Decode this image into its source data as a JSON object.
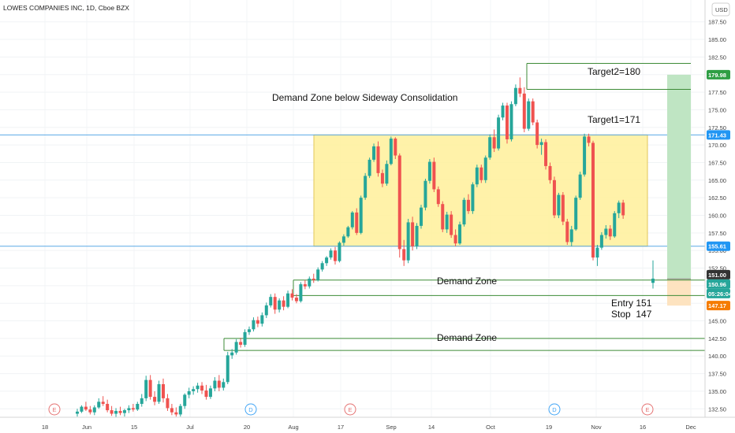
{
  "chart_data": {
    "type": "candlestick",
    "title": "LOWES COMPANIES INC, 1D, Cboe BZX",
    "currency": "USD",
    "y_ticks": [
      132.5,
      135.0,
      137.5,
      140.0,
      142.5,
      145.0,
      147.5,
      150.0,
      152.5,
      155.0,
      157.5,
      160.0,
      162.5,
      165.0,
      167.5,
      170.0,
      172.5,
      175.0,
      177.5,
      180.0,
      182.5,
      185.0,
      187.5
    ],
    "ylim": [
      131.3,
      190.6
    ],
    "x_ticks": [
      "18",
      "Jun",
      "15",
      "Jul",
      "20",
      "Aug",
      "17",
      "Sep",
      "14",
      "Oct",
      "19",
      "Nov",
      "16",
      "Dec"
    ],
    "price_labels": {
      "target2": "179.98",
      "resistance": "171.43",
      "support": "155.61",
      "last": "151.00",
      "entry": "150.96",
      "countdown": "05:26:04",
      "stop": "147.17"
    },
    "annotations": {
      "zone_title": "Demand Zone below Sideway Consolidation",
      "target2": "Target2=180",
      "target1": "Target1=171",
      "demand_zone_upper": "Demand Zone",
      "demand_zone_lower": "Demand Zone",
      "entry": "Entry 151",
      "stop": "Stop  147"
    },
    "zones": {
      "consolidation": [
        155.61,
        171.43
      ],
      "demand_upper": [
        148.6,
        150.8
      ],
      "demand_lower": [
        140.8,
        142.5
      ],
      "reward": [
        150.96,
        179.98
      ],
      "risk": [
        147.17,
        150.96
      ]
    },
    "event_markers": [
      "E",
      "D",
      "E",
      "D",
      "E"
    ],
    "candles": [
      {
        "o": 131.8,
        "h": 132.5,
        "l": 131.4,
        "c": 132.1
      },
      {
        "o": 132.1,
        "h": 133.0,
        "l": 131.9,
        "c": 132.8
      },
      {
        "o": 132.8,
        "h": 133.5,
        "l": 132.2,
        "c": 132.4
      },
      {
        "o": 132.4,
        "h": 132.9,
        "l": 131.7,
        "c": 132.0
      },
      {
        "o": 132.0,
        "h": 133.0,
        "l": 131.6,
        "c": 132.7
      },
      {
        "o": 132.7,
        "h": 134.0,
        "l": 132.5,
        "c": 133.5
      },
      {
        "o": 133.5,
        "h": 134.3,
        "l": 132.9,
        "c": 133.2
      },
      {
        "o": 133.2,
        "h": 133.8,
        "l": 132.0,
        "c": 132.3
      },
      {
        "o": 132.3,
        "h": 132.9,
        "l": 131.5,
        "c": 131.8
      },
      {
        "o": 131.8,
        "h": 132.6,
        "l": 131.3,
        "c": 132.2
      },
      {
        "o": 132.2,
        "h": 132.8,
        "l": 131.6,
        "c": 131.9
      },
      {
        "o": 131.9,
        "h": 132.5,
        "l": 131.4,
        "c": 132.3
      },
      {
        "o": 132.3,
        "h": 133.0,
        "l": 131.9,
        "c": 132.6
      },
      {
        "o": 132.6,
        "h": 133.2,
        "l": 132.1,
        "c": 132.4
      },
      {
        "o": 132.4,
        "h": 133.5,
        "l": 132.2,
        "c": 133.2
      },
      {
        "o": 133.2,
        "h": 134.6,
        "l": 132.8,
        "c": 134.0
      },
      {
        "o": 134.0,
        "h": 137.2,
        "l": 133.6,
        "c": 136.6
      },
      {
        "o": 136.6,
        "h": 137.3,
        "l": 133.8,
        "c": 134.2
      },
      {
        "o": 134.2,
        "h": 135.0,
        "l": 133.0,
        "c": 133.5
      },
      {
        "o": 133.5,
        "h": 136.5,
        "l": 133.2,
        "c": 136.0
      },
      {
        "o": 136.0,
        "h": 136.8,
        "l": 133.4,
        "c": 134.0
      },
      {
        "o": 134.0,
        "h": 134.6,
        "l": 132.2,
        "c": 132.6
      },
      {
        "o": 132.6,
        "h": 133.2,
        "l": 131.6,
        "c": 132.0
      },
      {
        "o": 132.0,
        "h": 132.7,
        "l": 131.4,
        "c": 131.7
      },
      {
        "o": 131.7,
        "h": 133.2,
        "l": 131.4,
        "c": 132.9
      },
      {
        "o": 132.9,
        "h": 134.7,
        "l": 132.5,
        "c": 134.5
      },
      {
        "o": 134.5,
        "h": 135.5,
        "l": 134.0,
        "c": 135.0
      },
      {
        "o": 135.0,
        "h": 135.7,
        "l": 134.5,
        "c": 135.3
      },
      {
        "o": 135.3,
        "h": 136.2,
        "l": 134.8,
        "c": 135.8
      },
      {
        "o": 135.8,
        "h": 136.3,
        "l": 134.6,
        "c": 135.1
      },
      {
        "o": 135.1,
        "h": 135.9,
        "l": 133.8,
        "c": 134.2
      },
      {
        "o": 134.2,
        "h": 135.8,
        "l": 133.9,
        "c": 135.4
      },
      {
        "o": 135.4,
        "h": 137.0,
        "l": 135.0,
        "c": 136.5
      },
      {
        "o": 136.5,
        "h": 137.3,
        "l": 135.0,
        "c": 135.5
      },
      {
        "o": 135.5,
        "h": 136.8,
        "l": 135.1,
        "c": 136.3
      },
      {
        "o": 136.3,
        "h": 140.6,
        "l": 136.0,
        "c": 140.1
      },
      {
        "o": 140.1,
        "h": 141.0,
        "l": 139.6,
        "c": 140.5
      },
      {
        "o": 140.5,
        "h": 142.4,
        "l": 140.2,
        "c": 142.0
      },
      {
        "o": 142.0,
        "h": 142.6,
        "l": 141.2,
        "c": 141.6
      },
      {
        "o": 141.6,
        "h": 143.8,
        "l": 141.3,
        "c": 143.4
      },
      {
        "o": 143.4,
        "h": 144.2,
        "l": 143.0,
        "c": 143.8
      },
      {
        "o": 143.8,
        "h": 145.5,
        "l": 143.5,
        "c": 145.1
      },
      {
        "o": 145.1,
        "h": 145.6,
        "l": 144.1,
        "c": 144.6
      },
      {
        "o": 144.6,
        "h": 146.2,
        "l": 144.2,
        "c": 145.8
      },
      {
        "o": 145.8,
        "h": 147.6,
        "l": 145.4,
        "c": 147.2
      },
      {
        "o": 147.2,
        "h": 148.8,
        "l": 146.9,
        "c": 148.4
      },
      {
        "o": 148.4,
        "h": 148.9,
        "l": 146.0,
        "c": 146.6
      },
      {
        "o": 146.6,
        "h": 148.2,
        "l": 146.2,
        "c": 147.9
      },
      {
        "o": 147.9,
        "h": 148.5,
        "l": 146.5,
        "c": 147.0
      },
      {
        "o": 147.0,
        "h": 149.3,
        "l": 146.8,
        "c": 148.9
      },
      {
        "o": 148.9,
        "h": 149.5,
        "l": 147.9,
        "c": 148.3
      },
      {
        "o": 148.3,
        "h": 148.8,
        "l": 147.5,
        "c": 147.8
      },
      {
        "o": 147.8,
        "h": 150.5,
        "l": 147.6,
        "c": 150.2
      },
      {
        "o": 150.2,
        "h": 150.8,
        "l": 149.5,
        "c": 149.9
      },
      {
        "o": 149.9,
        "h": 151.3,
        "l": 149.6,
        "c": 151.0
      },
      {
        "o": 151.0,
        "h": 151.7,
        "l": 150.4,
        "c": 150.8
      },
      {
        "o": 150.8,
        "h": 152.6,
        "l": 150.6,
        "c": 152.3
      },
      {
        "o": 152.3,
        "h": 153.5,
        "l": 152.0,
        "c": 153.2
      },
      {
        "o": 153.2,
        "h": 154.2,
        "l": 152.8,
        "c": 154.0
      },
      {
        "o": 154.0,
        "h": 155.3,
        "l": 153.7,
        "c": 155.0
      },
      {
        "o": 155.0,
        "h": 155.5,
        "l": 153.0,
        "c": 153.5
      },
      {
        "o": 153.5,
        "h": 156.3,
        "l": 153.3,
        "c": 156.1
      },
      {
        "o": 156.1,
        "h": 157.3,
        "l": 155.7,
        "c": 157.0
      },
      {
        "o": 157.0,
        "h": 158.5,
        "l": 156.8,
        "c": 158.3
      },
      {
        "o": 158.3,
        "h": 160.6,
        "l": 158.0,
        "c": 160.4
      },
      {
        "o": 160.4,
        "h": 161.0,
        "l": 157.2,
        "c": 157.5
      },
      {
        "o": 157.5,
        "h": 162.8,
        "l": 157.3,
        "c": 162.5
      },
      {
        "o": 162.5,
        "h": 166.0,
        "l": 162.2,
        "c": 165.6
      },
      {
        "o": 165.6,
        "h": 168.2,
        "l": 165.3,
        "c": 167.9
      },
      {
        "o": 167.9,
        "h": 170.2,
        "l": 167.6,
        "c": 169.8
      },
      {
        "o": 169.8,
        "h": 170.5,
        "l": 165.5,
        "c": 166.0
      },
      {
        "o": 166.0,
        "h": 166.5,
        "l": 164.0,
        "c": 164.5
      },
      {
        "o": 164.5,
        "h": 167.8,
        "l": 164.2,
        "c": 167.3
      },
      {
        "o": 167.3,
        "h": 171.2,
        "l": 167.1,
        "c": 170.9
      },
      {
        "o": 170.9,
        "h": 171.1,
        "l": 168.0,
        "c": 168.5
      },
      {
        "o": 168.5,
        "h": 168.8,
        "l": 154.0,
        "c": 155.2
      },
      {
        "o": 155.2,
        "h": 156.5,
        "l": 152.8,
        "c": 153.6
      },
      {
        "o": 153.6,
        "h": 159.5,
        "l": 153.2,
        "c": 159.0
      },
      {
        "o": 159.0,
        "h": 159.8,
        "l": 155.0,
        "c": 155.6
      },
      {
        "o": 155.6,
        "h": 158.9,
        "l": 155.2,
        "c": 158.5
      },
      {
        "o": 158.5,
        "h": 161.5,
        "l": 158.1,
        "c": 161.1
      },
      {
        "o": 161.1,
        "h": 165.2,
        "l": 160.7,
        "c": 164.9
      },
      {
        "o": 164.9,
        "h": 168.0,
        "l": 164.5,
        "c": 167.6
      },
      {
        "o": 167.6,
        "h": 168.2,
        "l": 163.3,
        "c": 163.7
      },
      {
        "o": 163.7,
        "h": 164.1,
        "l": 161.2,
        "c": 161.6
      },
      {
        "o": 161.6,
        "h": 162.0,
        "l": 157.6,
        "c": 158.0
      },
      {
        "o": 158.0,
        "h": 160.5,
        "l": 157.5,
        "c": 160.1
      },
      {
        "o": 160.1,
        "h": 160.6,
        "l": 156.8,
        "c": 157.2
      },
      {
        "o": 157.2,
        "h": 158.0,
        "l": 155.6,
        "c": 156.0
      },
      {
        "o": 156.0,
        "h": 159.1,
        "l": 155.8,
        "c": 158.7
      },
      {
        "o": 158.7,
        "h": 162.5,
        "l": 158.4,
        "c": 162.2
      },
      {
        "o": 162.2,
        "h": 163.0,
        "l": 160.2,
        "c": 160.6
      },
      {
        "o": 160.6,
        "h": 164.7,
        "l": 160.2,
        "c": 164.4
      },
      {
        "o": 164.4,
        "h": 167.2,
        "l": 164.0,
        "c": 166.8
      },
      {
        "o": 166.8,
        "h": 167.2,
        "l": 164.6,
        "c": 165.0
      },
      {
        "o": 165.0,
        "h": 168.5,
        "l": 164.6,
        "c": 168.2
      },
      {
        "o": 168.2,
        "h": 171.5,
        "l": 167.9,
        "c": 171.1
      },
      {
        "o": 171.1,
        "h": 172.2,
        "l": 169.0,
        "c": 169.5
      },
      {
        "o": 169.5,
        "h": 174.3,
        "l": 169.2,
        "c": 173.9
      },
      {
        "o": 173.9,
        "h": 176.0,
        "l": 173.5,
        "c": 175.6
      },
      {
        "o": 175.6,
        "h": 176.0,
        "l": 170.2,
        "c": 170.8
      },
      {
        "o": 170.8,
        "h": 176.2,
        "l": 170.5,
        "c": 175.8
      },
      {
        "o": 175.8,
        "h": 178.6,
        "l": 175.5,
        "c": 178.1
      },
      {
        "o": 178.1,
        "h": 179.6,
        "l": 176.8,
        "c": 177.3
      },
      {
        "o": 177.3,
        "h": 178.2,
        "l": 171.8,
        "c": 172.3
      },
      {
        "o": 172.3,
        "h": 176.6,
        "l": 172.0,
        "c": 176.2
      },
      {
        "o": 176.2,
        "h": 176.6,
        "l": 172.8,
        "c": 173.2
      },
      {
        "o": 173.2,
        "h": 173.6,
        "l": 169.5,
        "c": 170.0
      },
      {
        "o": 170.0,
        "h": 170.9,
        "l": 168.6,
        "c": 170.4
      },
      {
        "o": 170.4,
        "h": 170.8,
        "l": 166.5,
        "c": 167.0
      },
      {
        "o": 167.0,
        "h": 167.5,
        "l": 164.5,
        "c": 165.0
      },
      {
        "o": 165.0,
        "h": 165.5,
        "l": 159.6,
        "c": 160.0
      },
      {
        "o": 160.0,
        "h": 163.2,
        "l": 159.6,
        "c": 162.9
      },
      {
        "o": 162.9,
        "h": 163.3,
        "l": 158.6,
        "c": 159.1
      },
      {
        "o": 159.1,
        "h": 159.5,
        "l": 155.8,
        "c": 156.2
      },
      {
        "o": 156.2,
        "h": 158.5,
        "l": 155.6,
        "c": 158.0
      },
      {
        "o": 158.0,
        "h": 162.8,
        "l": 157.8,
        "c": 162.5
      },
      {
        "o": 162.5,
        "h": 166.2,
        "l": 162.2,
        "c": 165.8
      },
      {
        "o": 165.8,
        "h": 171.6,
        "l": 165.5,
        "c": 171.2
      },
      {
        "o": 171.2,
        "h": 171.6,
        "l": 169.8,
        "c": 170.3
      },
      {
        "o": 170.3,
        "h": 170.6,
        "l": 153.6,
        "c": 154.0
      },
      {
        "o": 154.0,
        "h": 155.8,
        "l": 152.8,
        "c": 155.4
      },
      {
        "o": 155.4,
        "h": 157.6,
        "l": 155.1,
        "c": 157.2
      },
      {
        "o": 157.2,
        "h": 158.6,
        "l": 156.7,
        "c": 158.1
      },
      {
        "o": 158.1,
        "h": 158.6,
        "l": 156.5,
        "c": 157.0
      },
      {
        "o": 157.0,
        "h": 160.6,
        "l": 156.8,
        "c": 160.3
      },
      {
        "o": 160.3,
        "h": 162.1,
        "l": 159.6,
        "c": 161.8
      },
      {
        "o": 161.8,
        "h": 162.2,
        "l": 159.5,
        "c": 160.0
      },
      {
        "o": 150.4,
        "h": 153.6,
        "l": 149.6,
        "c": 151.0
      }
    ],
    "colors": {
      "up": "#26a69a",
      "down": "#ef5350",
      "consolidation_fill": "#fff09a",
      "level_line": "#5aa9e6",
      "reward_fill": "#bfe5c3",
      "risk_fill": "#fde3c0",
      "zone_line": "#3d8b37",
      "green_badge": "#2f9e44",
      "blue_badge": "#2196f3",
      "orange_badge": "#f57c00",
      "dark_badge": "#333333",
      "event_e": "#e57373",
      "event_d": "#42a5f5"
    }
  }
}
